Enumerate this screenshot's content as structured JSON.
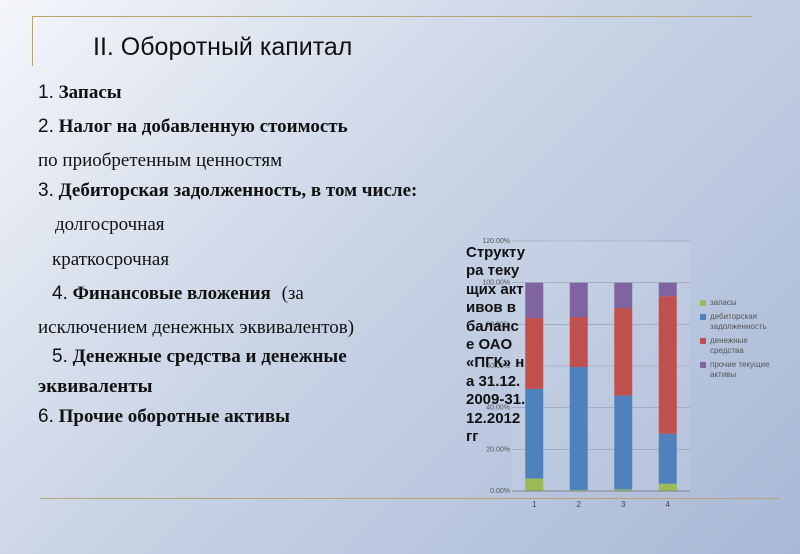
{
  "title": "II. Оборотный капитал",
  "lines": {
    "l1_num": "1.",
    "l1_text": "Запасы",
    "l2_num": "2.",
    "l2_text": "Налог на добавленную стоимость",
    "l2b": "по приобретенным ценностям",
    "l3_num": "3.",
    "l3_text": "Дебиторская задолженность, в том числе:",
    "l3a": "долгосрочная",
    "l3b": "краткосрочная",
    "l4_num": "4.",
    "l4_text": "Финансовые вложения",
    "l4_paren": "(за",
    "l4b": "исключением денежных эквивалентов)",
    "l5_num": "5.",
    "l5_text": "Денежные средства и денежные",
    "l5b": "эквиваленты",
    "l6_num": "6.",
    "l6_text": "Прочие оборотные активы"
  },
  "chart_data": {
    "type": "bar",
    "stacked": true,
    "title": "Структура текущих активов в балансе ОАО «ПГК» на 31.12.2009-31.12.2012гг",
    "categories": [
      "1",
      "2",
      "3",
      "4"
    ],
    "y_tick_labels": [
      "0.00%",
      "20.00%",
      "40.00%",
      "60.00%",
      "80.00%",
      "100.00%",
      "120.00%"
    ],
    "ylim": [
      0,
      120
    ],
    "series": [
      {
        "name": "запасы",
        "color": "#9bbb59",
        "values": [
          6,
          0.5,
          0.8,
          3.5
        ]
      },
      {
        "name": "дебиторская задолженность",
        "color": "#4f81bd",
        "values": [
          43,
          59,
          45,
          24
        ]
      },
      {
        "name": "денежные средства",
        "color": "#c0504d",
        "values": [
          34,
          24,
          42,
          66
        ]
      },
      {
        "name": "прочие текущие активы",
        "color": "#8064a2",
        "values": [
          17,
          16.5,
          12.2,
          6.5
        ]
      }
    ],
    "legend": "right"
  }
}
